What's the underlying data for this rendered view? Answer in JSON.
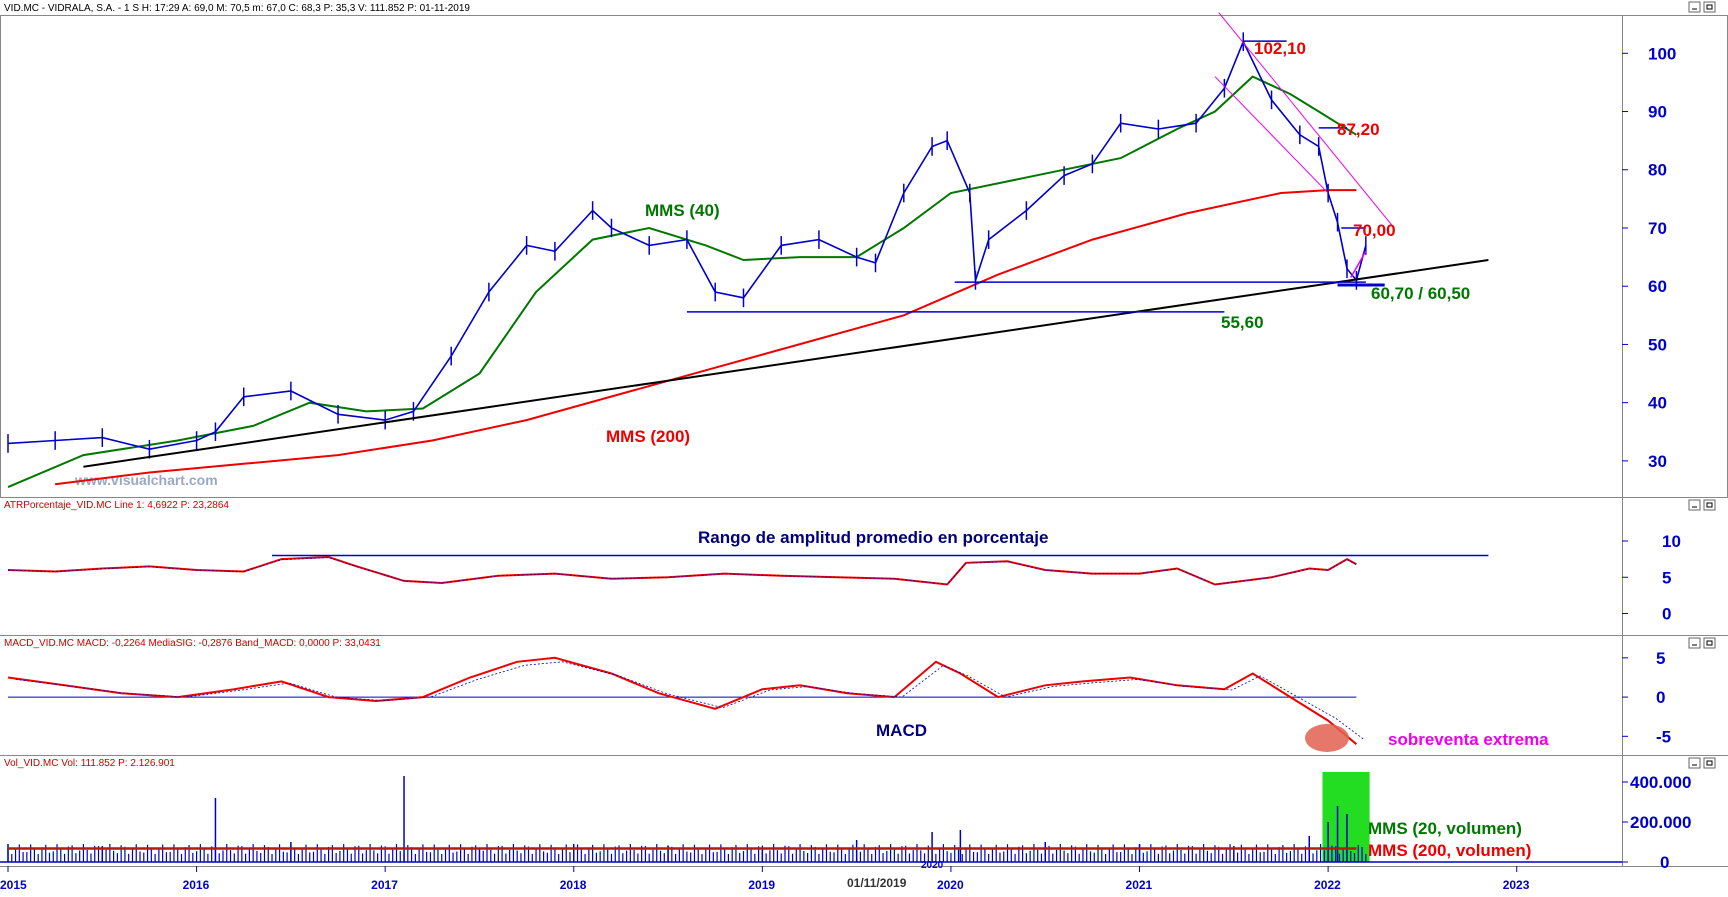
{
  "colors": {
    "price": "#0000cc",
    "axis": "#0000cc",
    "ma40": "#007700",
    "ma200": "#ee0000",
    "trend": "#000000",
    "channel": "#ee00ee",
    "annot_red": "#ee0000",
    "annot_green": "#007700",
    "annot_navy": "#000080",
    "annot_magenta": "#ee00ee",
    "vol_highlight": "#22dd22",
    "oversold_marker": "#e06050"
  },
  "panels": {
    "price": {
      "header": "VID.MC - VIDRALA, S.A. -  1 S  H: 17:29  A: 69,0  M: 70,5  m: 67,0  C: 68,3  P: 35,3  V: 111.852  P: 01-11-2019",
      "watermark": "www.visualchart.com"
    },
    "atr": {
      "header": "ATRPorcentaje_VID.MC  Line 1: 4,6922  P: 23,2864"
    },
    "macd": {
      "header": "MACD_VID.MC  MACD: -0,2264  MediaSIG: -0,2876  Band_MACD: 0,0000  P: 33,0431"
    },
    "vol": {
      "header": "Vol_VID.MC  Vol: 111.852  P: 2.126.901"
    }
  },
  "x_axis": {
    "labels": [
      "2015",
      "2016",
      "2017",
      "2018",
      "2019",
      "2020",
      "2021",
      "2022",
      "2023"
    ],
    "cursor_label": "01/11/2019",
    "cursor_sub": "2020"
  },
  "chart_data": [
    {
      "type": "line",
      "name": "price",
      "x_range": [
        2015.0,
        2023.5
      ],
      "ylim": [
        25,
        104
      ],
      "y_ticks": [
        "100",
        "90",
        "80",
        "70",
        "60",
        "50",
        "40",
        "30"
      ],
      "x": [
        2015.0,
        2015.25,
        2015.5,
        2015.75,
        2016.0,
        2016.1,
        2016.25,
        2016.5,
        2016.75,
        2017.0,
        2017.15,
        2017.35,
        2017.55,
        2017.75,
        2017.9,
        2018.1,
        2018.2,
        2018.4,
        2018.6,
        2018.75,
        2018.9,
        2019.1,
        2019.3,
        2019.5,
        2019.6,
        2019.75,
        2019.9,
        2019.98,
        2020.1,
        2020.13,
        2020.2,
        2020.4,
        2020.6,
        2020.75,
        2020.9,
        2021.1,
        2021.3,
        2021.45,
        2021.55,
        2021.7,
        2021.85,
        2021.95,
        2022.0,
        2022.05,
        2022.1,
        2022.15,
        2022.2
      ],
      "y": [
        33,
        33.5,
        34,
        32,
        33.5,
        35,
        41,
        42,
        38,
        37,
        38.5,
        48,
        59,
        67,
        66,
        73,
        70,
        67,
        68,
        59,
        58,
        67,
        68,
        65,
        64,
        76,
        84,
        85,
        76,
        61,
        68,
        73,
        79,
        81,
        88,
        87,
        88,
        94,
        102,
        92,
        86,
        84,
        76,
        71,
        63,
        61,
        67
      ],
      "series": [
        {
          "name": "MMS (40)",
          "x": [
            2015.0,
            2015.4,
            2015.9,
            2016.3,
            2016.6,
            2016.9,
            2017.2,
            2017.5,
            2017.8,
            2018.1,
            2018.4,
            2018.7,
            2018.9,
            2019.2,
            2019.5,
            2019.75,
            2020.0,
            2020.3,
            2020.6,
            2020.9,
            2021.2,
            2021.4,
            2021.6,
            2021.8,
            2021.95,
            2022.05,
            2022.15
          ],
          "y": [
            25.5,
            31,
            33.5,
            36,
            40,
            38.5,
            39,
            45,
            59,
            68,
            70,
            67,
            64.5,
            65,
            65,
            70,
            76,
            78,
            80,
            82,
            87,
            90,
            96,
            93,
            90,
            88,
            86
          ]
        },
        {
          "name": "MMS (200)",
          "x": [
            2015.25,
            2015.75,
            2016.25,
            2016.75,
            2017.25,
            2017.75,
            2018.25,
            2018.75,
            2019.25,
            2019.75,
            2020.25,
            2020.75,
            2021.25,
            2021.75,
            2022.0,
            2022.15
          ],
          "y": [
            26,
            28,
            29.5,
            31,
            33.5,
            37,
            41.5,
            46,
            50.5,
            55,
            62,
            68,
            72.5,
            76,
            76.5,
            76.5
          ]
        }
      ]
    },
    {
      "type": "line",
      "name": "ATR %",
      "ylim": [
        -2,
        14
      ],
      "y_ticks": [
        "10",
        "5",
        "0"
      ],
      "x": [
        2015.0,
        2015.25,
        2015.5,
        2015.75,
        2016.0,
        2016.25,
        2016.45,
        2016.7,
        2016.85,
        2017.1,
        2017.3,
        2017.6,
        2017.9,
        2018.2,
        2018.5,
        2018.8,
        2019.1,
        2019.4,
        2019.7,
        2019.98,
        2020.08,
        2020.3,
        2020.5,
        2020.75,
        2021.0,
        2021.2,
        2021.4,
        2021.7,
        2021.9,
        2022.0,
        2022.1,
        2022.15
      ],
      "y": [
        6,
        5.8,
        6.2,
        6.5,
        6,
        5.8,
        7.5,
        7.8,
        6.5,
        4.5,
        4.2,
        5.2,
        5.5,
        4.8,
        5,
        5.5,
        5.2,
        5,
        4.8,
        4,
        7,
        7.2,
        6,
        5.5,
        5.5,
        6.2,
        4,
        5,
        6.2,
        6,
        7.5,
        6.8
      ]
    },
    {
      "type": "line",
      "name": "MACD",
      "ylim": [
        -7,
        6
      ],
      "y_ticks": [
        "5",
        "0",
        "-5"
      ],
      "x": [
        2015.0,
        2015.3,
        2015.6,
        2015.9,
        2016.2,
        2016.45,
        2016.7,
        2016.95,
        2017.2,
        2017.45,
        2017.7,
        2017.9,
        2018.2,
        2018.45,
        2018.75,
        2019.0,
        2019.2,
        2019.45,
        2019.7,
        2019.92,
        2020.05,
        2020.25,
        2020.5,
        2020.7,
        2020.95,
        2021.2,
        2021.45,
        2021.6,
        2021.8,
        2022.0,
        2022.1,
        2022.15
      ],
      "y": [
        2.5,
        1.5,
        0.5,
        0,
        1,
        2,
        0,
        -0.5,
        0,
        2.5,
        4.5,
        5,
        3,
        0.5,
        -1.5,
        1,
        1.5,
        0.5,
        0,
        4.5,
        3,
        0,
        1.5,
        2,
        2.5,
        1.5,
        1,
        3,
        0,
        -3,
        -5,
        -6
      ]
    },
    {
      "type": "bar",
      "name": "Volumen",
      "ylim": [
        0,
        420000
      ],
      "y_ticks": [
        "400.000",
        "200.000",
        "0"
      ],
      "x": [
        2015.0,
        2015.5,
        2016.1,
        2016.5,
        2017.1,
        2017.5,
        2018.0,
        2018.5,
        2019.0,
        2019.5,
        2019.9,
        2020.05,
        2020.5,
        2021.0,
        2021.5,
        2021.9,
        2022.0,
        2022.05,
        2022.1
      ],
      "y": [
        90000,
        80000,
        320000,
        100000,
        430000,
        70000,
        90000,
        80000,
        70000,
        110000,
        150000,
        160000,
        100000,
        90000,
        80000,
        130000,
        200000,
        280000,
        240000
      ],
      "series": [
        {
          "name": "MMS (20, volumen)",
          "y_level": 70000
        },
        {
          "name": "MMS (200, volumen)",
          "y_level": 65000
        }
      ]
    }
  ],
  "annotations": {
    "p102": "102,10",
    "p87": "87,20",
    "p70": "70,00",
    "p6070": "60,70 / 60,50",
    "p556": "55,60",
    "mms40": "MMS (40)",
    "mms200": "MMS (200)",
    "atr_title": "Rango de amplitud promedio en porcentaje",
    "macd_title": "MACD",
    "oversold": "sobreventa extrema",
    "vol20": "MMS (20, volumen)",
    "vol200": "MMS (200, volumen)"
  },
  "levels": {
    "support_556": 55.6,
    "support_607": 60.7,
    "res_102": 102.1,
    "res_87": 87.2,
    "res_70": 70.0,
    "atr_line": 8
  }
}
